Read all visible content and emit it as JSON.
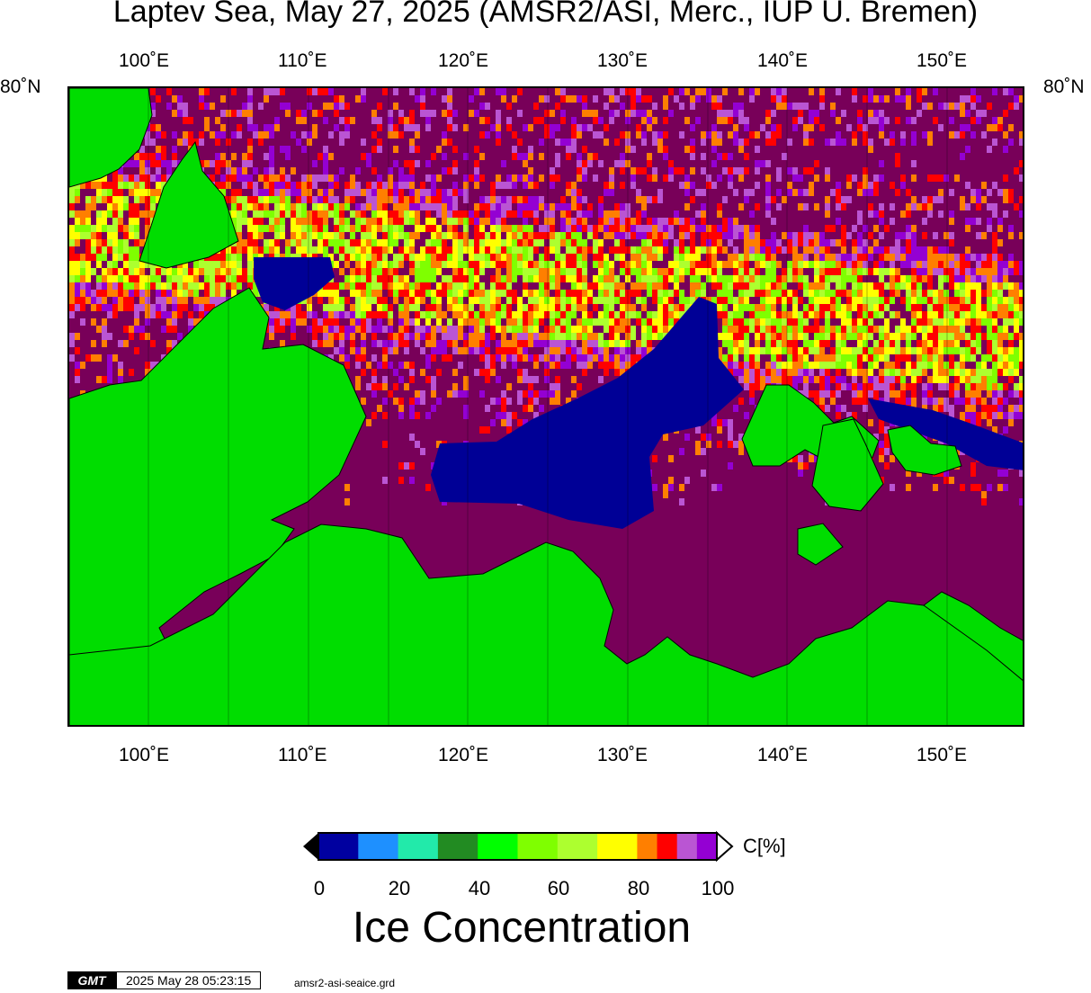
{
  "title": "Laptev Sea, May 27, 2025 (AMSR2/ASI, Merc., IUP U. Bremen)",
  "lon_ticks": [
    "100˚E",
    "110˚E",
    "120˚E",
    "130˚E",
    "140˚E",
    "150˚E"
  ],
  "lat_labels": {
    "left": "80˚N",
    "right": "80˚N"
  },
  "colorbar": {
    "unit": "C[%]",
    "ticks": [
      "0",
      "20",
      "40",
      "60",
      "80",
      "100"
    ],
    "title": "Ice Concentration",
    "colors": [
      "#0000a0",
      "#1e90ff",
      "#22eaaa",
      "#228b22",
      "#00ff00",
      "#7fff00",
      "#adff2f",
      "#ffff00",
      "#ff7f00",
      "#ff0000",
      "#ba55d3",
      "#9400d3"
    ]
  },
  "map_colors": {
    "land": "#00dd00",
    "ice_full": "#780059",
    "open_water": "#000096",
    "coast": "#000000"
  },
  "footer": {
    "logo": "GMT",
    "timestamp": "2025 May 28 05:23:15",
    "filename": "amsr2-asi-seaice.grd"
  }
}
